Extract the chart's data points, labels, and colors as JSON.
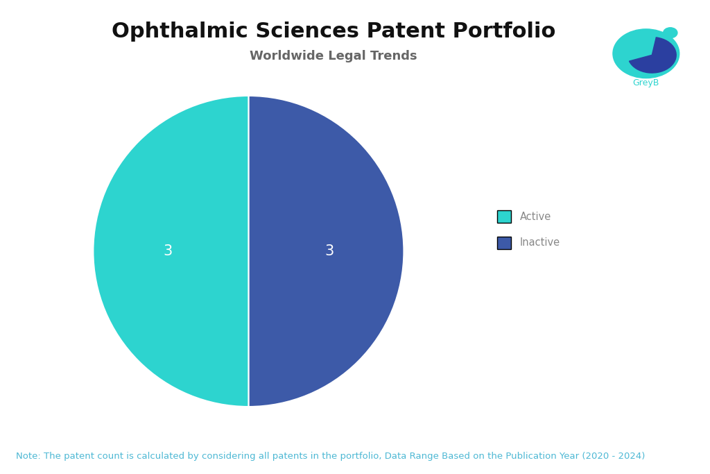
{
  "title": "Ophthalmic Sciences Patent Portfolio",
  "subtitle": "Worldwide Legal Trends",
  "labels": [
    "Inactive",
    "Active"
  ],
  "values": [
    3,
    3
  ],
  "colors": [
    "#3D5AA8",
    "#2DD4CF"
  ],
  "label_color": "#ffffff",
  "label_fontsize": 15,
  "legend_labels": [
    "Active",
    "Inactive"
  ],
  "legend_colors": [
    "#2DD4CF",
    "#3D5AA8"
  ],
  "note": "Note: The patent count is calculated by considering all patents in the portfolio, Data Range Based on the Publication Year (2020 - 2024)",
  "background_color": "#ffffff",
  "title_fontsize": 22,
  "subtitle_fontsize": 13,
  "note_fontsize": 9.5,
  "subtitle_color": "#666666",
  "legend_text_color": "#888888",
  "note_color": "#4db8d4"
}
